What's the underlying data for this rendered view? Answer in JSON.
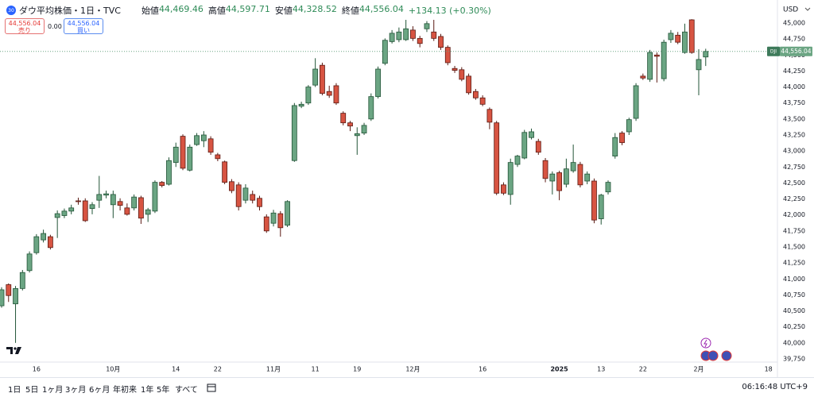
{
  "header": {
    "symbol": "ダウ平均株価・1日・TVC",
    "ohlc": [
      {
        "label": "始値",
        "value": "44,469.46"
      },
      {
        "label": "高値",
        "value": "44,597.71"
      },
      {
        "label": "安値",
        "value": "44,328.52"
      },
      {
        "label": "終値",
        "value": "44,556.04"
      }
    ],
    "change": "+134.13 (+0.30%)"
  },
  "trade": {
    "sell_price": "44,556.04",
    "sell_label": "売り",
    "spread": "0.00",
    "buy_price": "44,556.04",
    "buy_label": "買い"
  },
  "chart_data": {
    "type": "candlestick",
    "currency": "USD",
    "up_color": "#6ba583",
    "down_color": "#d75442",
    "up_border": "#225437",
    "down_border": "#5b1a13",
    "categories": [
      null,
      null,
      null,
      null,
      null,
      "16",
      null,
      null,
      null,
      null,
      null,
      null,
      null,
      null,
      null,
      null,
      "10月",
      null,
      null,
      null,
      null,
      null,
      null,
      null,
      null,
      "14",
      null,
      null,
      null,
      null,
      null,
      "22",
      null,
      null,
      null,
      null,
      null,
      null,
      null,
      "11月",
      null,
      null,
      null,
      null,
      null,
      "11",
      null,
      null,
      null,
      null,
      null,
      "19",
      null,
      null,
      null,
      null,
      null,
      null,
      null,
      "12月",
      null,
      null,
      null,
      null,
      null,
      null,
      null,
      null,
      null,
      "16",
      null,
      null,
      null,
      null,
      null,
      null,
      null,
      null,
      null,
      null,
      "2025",
      null,
      null,
      null,
      null,
      null,
      "13",
      null,
      null,
      null,
      null,
      null,
      "22",
      null,
      null,
      null,
      null,
      null,
      null,
      null,
      "2月",
      null,
      null,
      null,
      null,
      null,
      null,
      null,
      null,
      null,
      "18",
      null
    ],
    "open": [
      40580,
      40910,
      40610,
      40850,
      41130,
      41410,
      41610,
      41660,
      41960,
      41990,
      42060,
      42220,
      42220,
      42100,
      42230,
      42310,
      42160,
      42210,
      42110,
      42110,
      42270,
      42010,
      42060,
      42510,
      42480,
      42820,
      43230,
      42700,
      43100,
      43160,
      43190,
      42940,
      42830,
      42520,
      42470,
      42230,
      42320,
      42260,
      41970,
      41870,
      42020,
      41840,
      42850,
      43700,
      43750,
      44030,
      44340,
      43930,
      44020,
      43590,
      43440,
      43240,
      43280,
      43500,
      43850,
      44370,
      44710,
      44740,
      44740,
      44890,
      44760,
      44910,
      44860,
      44790,
      44620,
      44290,
      44270,
      44170,
      43930,
      43830,
      43650,
      43440,
      42470,
      42320,
      42790,
      42890,
      43210,
      43150,
      42850,
      42530,
      42660,
      42480,
      42690,
      42790,
      42530,
      42530,
      41940,
      42360,
      42920,
      43280,
      43300,
      43510,
      44170,
      44120,
      44500,
      44130,
      44740,
      44810,
      44540,
      45050,
      44270,
      44469.46,
      null,
      null,
      null,
      null,
      null,
      null,
      null,
      null,
      null,
      null
    ],
    "high": [
      40870,
      40930,
      40890,
      41140,
      41430,
      41700,
      41770,
      41690,
      42070,
      42100,
      42160,
      42270,
      42260,
      42200,
      42610,
      42380,
      42380,
      42260,
      42180,
      42320,
      42300,
      42110,
      42540,
      42530,
      42900,
      43130,
      43260,
      43100,
      43280,
      43310,
      43230,
      42970,
      42850,
      42560,
      42510,
      42480,
      42380,
      42300,
      42010,
      42080,
      42060,
      42230,
      43750,
      43770,
      44030,
      44450,
      44380,
      44020,
      44060,
      43620,
      43470,
      43370,
      43440,
      43900,
      44320,
      44760,
      44890,
      44930,
      45050,
      44950,
      44800,
      45030,
      45050,
      44830,
      44650,
      44330,
      44310,
      44210,
      43970,
      43870,
      43680,
      43470,
      42510,
      42880,
      42940,
      43330,
      43350,
      43190,
      42890,
      42680,
      42690,
      42880,
      43100,
      42830,
      42680,
      42570,
      42330,
      42540,
      43280,
      43310,
      43520,
      44060,
      44210,
      44580,
      44540,
      44740,
      44890,
      44860,
      44990,
      45060,
      44590,
      44597.71,
      null,
      null,
      null,
      null,
      null,
      null,
      null,
      null,
      null,
      null
    ],
    "low": [
      40550,
      40640,
      40000,
      40820,
      41100,
      41380,
      41570,
      41460,
      41640,
      41950,
      42010,
      42160,
      41890,
      42010,
      42110,
      42260,
      41950,
      42070,
      41990,
      42070,
      41860,
      41890,
      42030,
      42430,
      42460,
      42750,
      42700,
      42680,
      43080,
      43060,
      42940,
      42840,
      42480,
      42340,
      42070,
      42180,
      42180,
      42070,
      41720,
      41820,
      41660,
      41810,
      42830,
      43670,
      43720,
      44000,
      43870,
      43830,
      43720,
      43400,
      43310,
      42940,
      43250,
      43470,
      43820,
      44340,
      44680,
      44700,
      44720,
      44720,
      44620,
      44860,
      44720,
      44580,
      44340,
      44220,
      44090,
      43880,
      43800,
      43700,
      43340,
      42310,
      42310,
      42160,
      42750,
      42870,
      43180,
      42940,
      42510,
      42320,
      42230,
      42430,
      42660,
      42430,
      42480,
      41870,
      41850,
      42320,
      42880,
      43090,
      43250,
      43470,
      44110,
      44080,
      44070,
      44090,
      44690,
      44670,
      44520,
      44520,
      43870,
      44328.52,
      null,
      null,
      null,
      null,
      null,
      null,
      null,
      null,
      null,
      null
    ],
    "close": [
      40830,
      40740,
      40850,
      41100,
      41390,
      41660,
      41710,
      41490,
      42020,
      42060,
      42110,
      42210,
      41910,
      42160,
      42320,
      42330,
      42320,
      42150,
      42010,
      42280,
      41950,
      42080,
      42510,
      42460,
      42850,
      43060,
      42730,
      43060,
      43240,
      43250,
      42980,
      42880,
      42510,
      42380,
      42130,
      42420,
      42230,
      42130,
      41750,
      42030,
      41800,
      42210,
      43710,
      43730,
      44000,
      44280,
      43900,
      43870,
      43750,
      43440,
      43390,
      43270,
      43400,
      43850,
      44280,
      44730,
      44840,
      44860,
      44910,
      44760,
      44680,
      44990,
      44760,
      44620,
      44380,
      44260,
      44120,
      43910,
      43830,
      43730,
      43450,
      42340,
      42340,
      42820,
      42920,
      43290,
      43300,
      42980,
      42570,
      42640,
      42380,
      42720,
      42820,
      42470,
      42640,
      41920,
      42310,
      42510,
      43210,
      43130,
      43490,
      44020,
      44140,
      44540,
      44480,
      44700,
      44840,
      44700,
      44860,
      44540,
      44430,
      44556.04,
      null,
      null,
      null,
      null,
      null,
      null,
      null,
      null,
      null,
      null
    ],
    "ylim": [
      39700,
      45360
    ],
    "yticks": [
      {
        "value": 39750,
        "label": "39,750"
      },
      {
        "value": 40000,
        "label": "40,000"
      },
      {
        "value": 40250,
        "label": "40,250"
      },
      {
        "value": 40500,
        "label": "40,500"
      },
      {
        "value": 40750,
        "label": "40,750"
      },
      {
        "value": 41000,
        "label": "41,000"
      },
      {
        "value": 41250,
        "label": "41,250"
      },
      {
        "value": 41500,
        "label": "41,500"
      },
      {
        "value": 41750,
        "label": "41,750"
      },
      {
        "value": 42000,
        "label": "42,000"
      },
      {
        "value": 42250,
        "label": "42,250"
      },
      {
        "value": 42500,
        "label": "42,500"
      },
      {
        "value": 42750,
        "label": "42,750"
      },
      {
        "value": 43000,
        "label": "43,000"
      },
      {
        "value": 43250,
        "label": "43,250"
      },
      {
        "value": 43500,
        "label": "43,500"
      },
      {
        "value": 43750,
        "label": "43,750"
      },
      {
        "value": 44000,
        "label": "44,000"
      },
      {
        "value": 44250,
        "label": "44,250"
      },
      {
        "value": 44500,
        "label": "44,500"
      },
      {
        "value": 44750,
        "label": "44,750"
      },
      {
        "value": 45000,
        "label": "45,000"
      }
    ],
    "grid": false,
    "price_line": {
      "symbol": "DJI",
      "value": 44556.04,
      "label": "44,556.04",
      "color": "#6ba583"
    }
  },
  "toolbar": {
    "ranges": [
      "1日",
      "5日",
      "1ヶ月",
      "3ヶ月",
      "6ヶ月",
      "年初来",
      "1年",
      "5年",
      "すべて"
    ],
    "time": "06:16:48 UTC+9"
  }
}
